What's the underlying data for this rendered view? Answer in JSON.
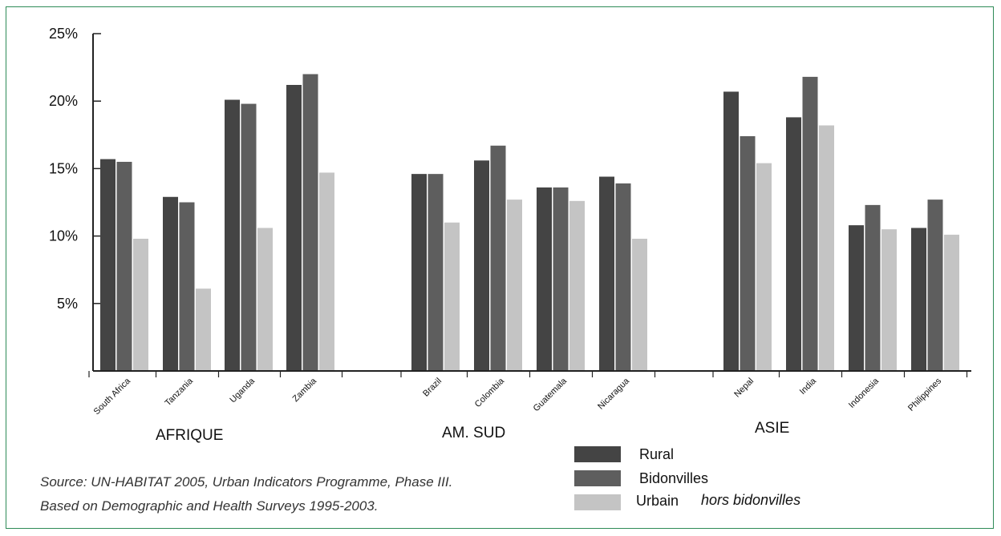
{
  "chart_data": {
    "type": "bar",
    "title": "",
    "xlabel": "",
    "ylabel": "",
    "ylim": [
      0,
      25
    ],
    "y_ticks": [
      "5%",
      "10%",
      "15%",
      "20%",
      "25%"
    ],
    "y_tick_values": [
      5,
      10,
      15,
      20,
      25
    ],
    "grid": false,
    "legend_position": "bottom-right",
    "categories": [
      "South Africa",
      "Tanzania",
      "Uganda",
      "Zambia",
      "Brazil",
      "Colombia",
      "Guatemala",
      "Nicaragua",
      "Nepal",
      "India",
      "Indonesia",
      "Philippines"
    ],
    "groups": [
      {
        "label": "AFRIQUE",
        "members": [
          "South Africa",
          "Tanzania",
          "Uganda",
          "Zambia"
        ]
      },
      {
        "label": "AM. SUD",
        "members": [
          "Brazil",
          "Colombia",
          "Guatemala",
          "Nicaragua"
        ]
      },
      {
        "label": "ASIE",
        "members": [
          "Nepal",
          "India",
          "Indonesia",
          "Philippines"
        ]
      }
    ],
    "series": [
      {
        "name": "Rural",
        "color": "#444444",
        "values": [
          15.7,
          12.9,
          20.1,
          21.2,
          14.6,
          15.6,
          13.6,
          14.4,
          20.7,
          18.8,
          10.8,
          10.6
        ]
      },
      {
        "name": "Bidonvilles",
        "color": "#5e5e5e",
        "values": [
          15.5,
          12.5,
          19.8,
          22.0,
          14.6,
          16.7,
          13.6,
          13.9,
          17.4,
          21.8,
          12.3,
          12.7
        ]
      },
      {
        "name": "Urbain",
        "name_suffix": "hors bidonvilles",
        "color": "#c4c4c4",
        "values": [
          9.8,
          6.1,
          10.6,
          14.7,
          11.0,
          12.7,
          12.6,
          9.8,
          15.4,
          18.2,
          10.5,
          10.1
        ]
      }
    ]
  },
  "legend": {
    "rural_label": "Rural",
    "bidonvilles_label": "Bidonvilles",
    "urbain_label": "Urbain",
    "urbain_note": "hors bidonvilles"
  },
  "source": {
    "line1": "Source: UN-HABITAT 2005, Urban Indicators Programme, Phase III.",
    "line2": "Based on Demographic and Health Surveys 1995-2003."
  },
  "colors": {
    "frame": "#2e8b57",
    "axis": "#222222"
  }
}
